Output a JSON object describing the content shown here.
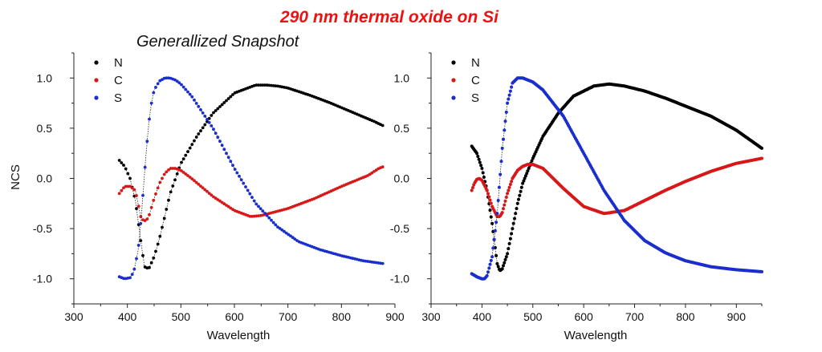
{
  "figure": {
    "title": "290 nm thermal oxide on Si",
    "title_color": "#ee1111"
  },
  "chart_data": [
    {
      "type": "scatter",
      "title": "Generallized Snapshot",
      "xlabel": "Wavelength",
      "ylabel": "NCS",
      "xlim": [
        300,
        900
      ],
      "ylim": [
        -1.25,
        1.25
      ],
      "xticks": [
        "300",
        "400",
        "500",
        "600",
        "700",
        "800",
        "900"
      ],
      "yticks": [
        "-1.0",
        "-0.5",
        "0.0",
        "0.5",
        "1.0"
      ],
      "grid": false,
      "legend_position": "top-left",
      "fit_line": "dotted",
      "series": [
        {
          "name": "N",
          "color": "#000000",
          "x": [
            385,
            395,
            405,
            415,
            425,
            432,
            440,
            450,
            460,
            480,
            500,
            530,
            560,
            600,
            640,
            660,
            680,
            700,
            740,
            780,
            820,
            860,
            880
          ],
          "y": [
            0.18,
            0.12,
            0.0,
            -0.22,
            -0.62,
            -0.88,
            -0.9,
            -0.78,
            -0.6,
            -0.15,
            0.15,
            0.42,
            0.65,
            0.85,
            0.93,
            0.93,
            0.92,
            0.9,
            0.83,
            0.75,
            0.66,
            0.57,
            0.52
          ]
        },
        {
          "name": "C",
          "color": "#d81818",
          "x": [
            385,
            395,
            405,
            415,
            420,
            425,
            430,
            435,
            440,
            450,
            460,
            470,
            480,
            490,
            500,
            520,
            560,
            600,
            630,
            650,
            700,
            750,
            800,
            850,
            870,
            880
          ],
          "y": [
            -0.15,
            -0.08,
            -0.08,
            -0.12,
            -0.25,
            -0.38,
            -0.42,
            -0.42,
            -0.38,
            -0.2,
            -0.05,
            0.05,
            0.1,
            0.1,
            0.08,
            0.0,
            -0.18,
            -0.32,
            -0.38,
            -0.37,
            -0.3,
            -0.2,
            -0.08,
            0.03,
            0.1,
            0.12
          ]
        },
        {
          "name": "S",
          "color": "#1a2ecc",
          "x": [
            385,
            395,
            405,
            412,
            420,
            425,
            430,
            435,
            440,
            445,
            450,
            460,
            470,
            480,
            490,
            500,
            520,
            560,
            600,
            640,
            680,
            720,
            760,
            800,
            840,
            880
          ],
          "y": [
            -0.98,
            -1.0,
            -0.99,
            -0.93,
            -0.72,
            -0.45,
            -0.1,
            0.25,
            0.55,
            0.75,
            0.88,
            0.97,
            1.0,
            1.0,
            0.98,
            0.94,
            0.82,
            0.5,
            0.1,
            -0.25,
            -0.48,
            -0.63,
            -0.71,
            -0.77,
            -0.82,
            -0.85
          ]
        }
      ]
    },
    {
      "type": "line",
      "title": "",
      "xlabel": "Wavelength",
      "ylabel": "",
      "xlim": [
        300,
        950
      ],
      "ylim": [
        -1.25,
        1.25
      ],
      "xticks": [
        "300",
        "400",
        "500",
        "600",
        "700",
        "800",
        "900"
      ],
      "yticks": [
        "-1.0",
        "-0.5",
        "0.0",
        "0.5",
        "1.0"
      ],
      "grid": false,
      "legend_position": "top-left",
      "fit_line": "dotted",
      "series": [
        {
          "name": "N",
          "color": "#000000",
          "x": [
            380,
            390,
            400,
            410,
            420,
            430,
            435,
            440,
            450,
            460,
            470,
            480,
            500,
            520,
            550,
            580,
            620,
            650,
            680,
            720,
            760,
            800,
            850,
            900,
            950
          ],
          "y": [
            0.32,
            0.25,
            0.1,
            -0.12,
            -0.45,
            -0.85,
            -0.92,
            -0.9,
            -0.75,
            -0.5,
            -0.25,
            -0.05,
            0.2,
            0.42,
            0.65,
            0.82,
            0.92,
            0.94,
            0.92,
            0.87,
            0.8,
            0.72,
            0.62,
            0.48,
            0.3
          ]
        },
        {
          "name": "C",
          "color": "#d81818",
          "x": [
            380,
            385,
            390,
            395,
            400,
            410,
            420,
            430,
            435,
            440,
            450,
            460,
            470,
            480,
            490,
            500,
            520,
            560,
            600,
            640,
            680,
            720,
            760,
            800,
            850,
            900,
            950
          ],
          "y": [
            -0.12,
            -0.05,
            -0.01,
            0.0,
            -0.02,
            -0.12,
            -0.28,
            -0.38,
            -0.38,
            -0.34,
            -0.15,
            0.0,
            0.08,
            0.12,
            0.14,
            0.14,
            0.1,
            -0.1,
            -0.28,
            -0.35,
            -0.32,
            -0.22,
            -0.12,
            -0.03,
            0.07,
            0.15,
            0.2
          ]
        },
        {
          "name": "S",
          "color": "#1a2ecc",
          "x": [
            380,
            390,
            400,
            405,
            410,
            420,
            430,
            440,
            450,
            460,
            470,
            480,
            490,
            500,
            520,
            560,
            600,
            640,
            680,
            720,
            760,
            800,
            850,
            900,
            950
          ],
          "y": [
            -0.95,
            -0.98,
            -1.0,
            -1.0,
            -0.97,
            -0.78,
            -0.35,
            0.3,
            0.75,
            0.95,
            1.0,
            1.0,
            0.98,
            0.96,
            0.88,
            0.62,
            0.25,
            -0.12,
            -0.42,
            -0.62,
            -0.74,
            -0.82,
            -0.88,
            -0.91,
            -0.93
          ]
        }
      ]
    }
  ]
}
